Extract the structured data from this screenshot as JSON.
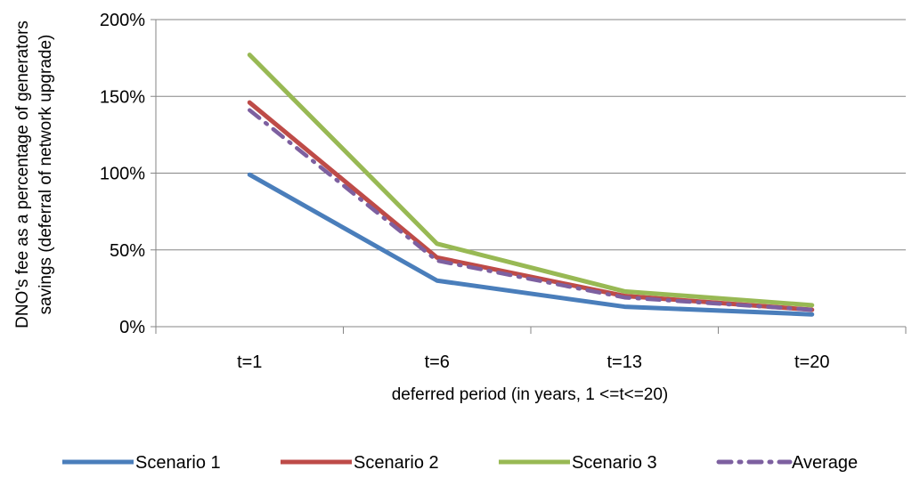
{
  "chart_data": {
    "type": "line",
    "title": "",
    "xlabel": "deferred period (in years, 1 <=t<=20)",
    "ylabel_line1": "DNO's fee as a percentage of generators",
    "ylabel_line2": "savings (deferral of network upgrade)",
    "categories": [
      "t=1",
      "t=6",
      "t=13",
      "t=20"
    ],
    "y_ticks": [
      "0%",
      "50%",
      "100%",
      "150%",
      "200%"
    ],
    "ylim": [
      0,
      200
    ],
    "y_unit": "%",
    "grid": "horizontal",
    "legend_position": "bottom",
    "series": [
      {
        "name": "Scenario 1",
        "values": [
          99,
          30,
          13,
          8
        ],
        "color": "#4a7ebb",
        "style": "solid"
      },
      {
        "name": "Scenario 2",
        "values": [
          146,
          45,
          20,
          11
        ],
        "color": "#be4b48",
        "style": "solid"
      },
      {
        "name": "Scenario 3",
        "values": [
          177,
          54,
          23,
          14
        ],
        "color": "#98b954",
        "style": "solid"
      },
      {
        "name": "Average",
        "values": [
          141,
          43,
          19,
          11
        ],
        "color": "#7d60a0",
        "style": "dash-dot"
      }
    ]
  }
}
